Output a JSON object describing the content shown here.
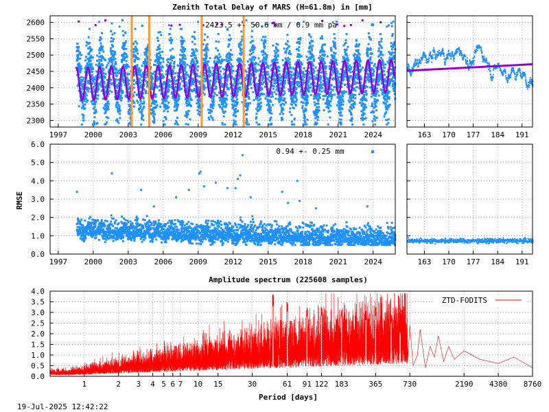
{
  "title": "Zenith Total Delay of MARS (H=61.8m) in [mm]",
  "timestamp": "19-Jul-2025 12:42:22",
  "colors": {
    "observations": "#1e90ff",
    "fit": "#9400d3",
    "equipment_change": "#ff9933",
    "spectrum": "#ff0000"
  },
  "chart_data": [
    {
      "type": "scatter",
      "panel": "ztd-timeseries",
      "ylabel": "",
      "annotation": "2423.5 +-  50.6 mm /  0.9 mm pa",
      "x_ticks": [
        "1997",
        "2000",
        "2003",
        "2006",
        "2009",
        "2012",
        "2015",
        "2018",
        "2021",
        "2024"
      ],
      "xlim": [
        1996.3,
        2025.9
      ],
      "y_ticks": [
        "2300",
        "2350",
        "2400",
        "2450",
        "2500",
        "2550",
        "2600"
      ],
      "ylim": [
        2280,
        2620
      ],
      "grid": true,
      "series": [
        {
          "role": "observations",
          "x_start": 1998.5,
          "x_end": 2025.8,
          "mean": 2423.5,
          "seasonal_amplitude": 95,
          "noise": 45
        },
        {
          "role": "seasonal fit",
          "x_start": 1998.5,
          "x_end": 2025.8,
          "mean": 2423.5,
          "trend_mm_per_year": 0.9,
          "amplitude": 50
        }
      ],
      "equipment_changes": [
        2003.3,
        2004.8,
        2009.3,
        2012.9
      ]
    },
    {
      "type": "scatter",
      "panel": "ztd-last-month",
      "x_ticks": [
        "163",
        "170",
        "177",
        "184",
        "191"
      ],
      "xlim": [
        158,
        194
      ],
      "ylim": [
        2280,
        2620
      ],
      "grid": true,
      "series": [
        {
          "role": "observations",
          "x_start": 158,
          "x_end": 194,
          "range": [
            2355,
            2545
          ]
        },
        {
          "role": "fit",
          "start": 2452,
          "end": 2472
        }
      ]
    },
    {
      "type": "scatter",
      "panel": "rmse-timeseries",
      "ylabel": "RMSE",
      "annotation": "0.94 +-  0.25 mm",
      "x_ticks": [
        "1997",
        "2000",
        "2003",
        "2006",
        "2009",
        "2012",
        "2015",
        "2018",
        "2021",
        "2024"
      ],
      "xlim": [
        1996.3,
        2025.9
      ],
      "y_ticks": [
        "0.0",
        "1.0",
        "2.0",
        "3.0",
        "4.0",
        "5.0",
        "6.0"
      ],
      "ylim": [
        0,
        6
      ],
      "grid": true,
      "series": [
        {
          "role": "rmse",
          "x_start": 1998.5,
          "x_end": 2025.8,
          "start_level": 1.3,
          "end_level": 0.75,
          "spread": 0.35
        }
      ],
      "outliers": [
        [
          1998.6,
          3.4
        ],
        [
          2001.6,
          4.4
        ],
        [
          2004.1,
          3.5
        ],
        [
          2005.2,
          2.6
        ],
        [
          2007.1,
          3.1
        ],
        [
          2008.2,
          3.5
        ],
        [
          2009.1,
          4.4
        ],
        [
          2009.2,
          4.5
        ],
        [
          2009.5,
          3.7
        ],
        [
          2010.5,
          3.9
        ],
        [
          2011.5,
          3.6
        ],
        [
          2012.2,
          3.6
        ],
        [
          2012.4,
          4.1
        ],
        [
          2012.6,
          4.3
        ],
        [
          2012.8,
          5.4
        ],
        [
          2013.5,
          3.1
        ],
        [
          2016.2,
          3.4
        ],
        [
          2016.7,
          2.8
        ],
        [
          2017.5,
          4.0
        ],
        [
          2017.7,
          2.9
        ],
        [
          2019.1,
          2.5
        ],
        [
          2023.5,
          2.6
        ],
        [
          2025.2,
          1.7
        ]
      ]
    },
    {
      "type": "scatter",
      "panel": "rmse-last-month",
      "x_ticks": [
        "163",
        "170",
        "177",
        "184",
        "191"
      ],
      "xlim": [
        158,
        194
      ],
      "ylim": [
        0,
        6
      ],
      "grid": true,
      "series": [
        {
          "role": "rmse",
          "level": 0.72,
          "spread": 0.12
        }
      ]
    },
    {
      "type": "line",
      "panel": "amplitude-spectrum",
      "title": "Amplitude spectrum (225608 samples)",
      "xlabel": "Period [days]",
      "legend": "ZTD-FODITS",
      "legend_position": "top-right",
      "x_scale": "log",
      "xlim": [
        0.5,
        8760
      ],
      "x_ticks": [
        "1",
        "2",
        "3",
        "4",
        "5",
        "6",
        "7",
        "10",
        "15",
        "30",
        "61",
        "91",
        "122",
        "183",
        "365",
        "730",
        "2190",
        "4380",
        "8760"
      ],
      "x_tick_values": [
        1,
        2,
        3,
        4,
        5,
        6,
        7,
        10,
        15,
        30,
        61,
        91,
        122,
        183,
        365,
        730,
        2190,
        4380,
        8760
      ],
      "y_ticks": [
        "0.0",
        "0.5",
        "1.0",
        "1.5",
        "2.0",
        "2.5",
        "3.0",
        "3.5",
        "4.0"
      ],
      "ylim": [
        0,
        4
      ],
      "grid": true,
      "peaks": [
        [
          45.7,
          3.85
        ],
        [
          61,
          3.5
        ],
        [
          91,
          3.25
        ],
        [
          122,
          3.3
        ],
        [
          183,
          3.15
        ],
        [
          300,
          3.1
        ],
        [
          365,
          3.3
        ],
        [
          500,
          2.9
        ],
        [
          600,
          2.4
        ],
        [
          730,
          1.2
        ],
        [
          900,
          2.2
        ],
        [
          1300,
          1.9
        ],
        [
          1600,
          1.4
        ],
        [
          2190,
          1.2
        ],
        [
          3000,
          0.8
        ],
        [
          4380,
          0.6
        ],
        [
          6000,
          0.9
        ],
        [
          8760,
          0.4
        ]
      ]
    }
  ]
}
